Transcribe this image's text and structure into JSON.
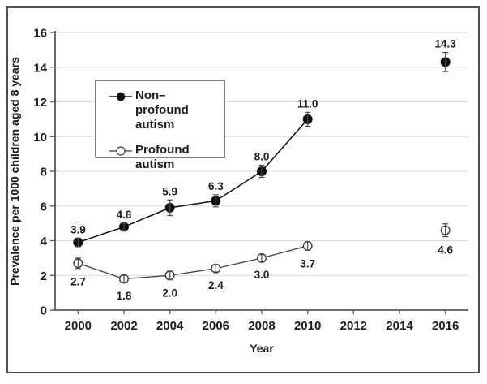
{
  "colors": {
    "background": "#ffffff",
    "frame_border": "#4d4d4d",
    "gridline": "#d9d9d9",
    "axis": "#595959",
    "series1": "#0f0f0f",
    "series2": "#3f3f3f",
    "legend_border": "#7f7f7f",
    "text": "#1a1a1a"
  },
  "legend": {
    "items": [
      {
        "label": "Non–profound autism",
        "marker": "filled-circle"
      },
      {
        "label": "Profound autism",
        "marker": "open-circle"
      }
    ]
  },
  "chart_data": {
    "type": "line",
    "title": "",
    "xlabel": "Year",
    "ylabel": "Prevalence per 1000 children aged 8 years",
    "x_categories": [
      "2000",
      "2002",
      "2004",
      "2006",
      "2008",
      "2010",
      "2012",
      "2014",
      "2016"
    ],
    "ylim": [
      0,
      16
    ],
    "y_tick_interval": 2,
    "y_ticks": [
      "0",
      "2",
      "4",
      "6",
      "8",
      "10",
      "12",
      "14",
      "16"
    ],
    "grid": "horizontal-light",
    "legend_position": "inside-upper-left",
    "error_bars": true,
    "series": [
      {
        "name": "Non–profound autism",
        "marker": "filled-circle",
        "color": "#0f0f0f",
        "label_position": "above",
        "points": [
          {
            "x": "2000",
            "y": 3.9,
            "label": "3.9",
            "err": 0.25,
            "connected": true
          },
          {
            "x": "2002",
            "y": 4.8,
            "label": "4.8",
            "err": 0.2,
            "connected": true
          },
          {
            "x": "2004",
            "y": 5.9,
            "label": "5.9",
            "err": 0.45,
            "connected": true
          },
          {
            "x": "2006",
            "y": 6.3,
            "label": "6.3",
            "err": 0.35,
            "connected": true
          },
          {
            "x": "2008",
            "y": 8.0,
            "label": "8.0",
            "err": 0.35,
            "connected": true
          },
          {
            "x": "2010",
            "y": 11.0,
            "label": "11.0",
            "err": 0.4,
            "connected": true
          },
          {
            "x": "2016",
            "y": 14.3,
            "label": "14.3",
            "err": 0.55,
            "connected": false
          }
        ]
      },
      {
        "name": "Profound autism",
        "marker": "open-circle",
        "color": "#3f3f3f",
        "label_position": "below",
        "points": [
          {
            "x": "2000",
            "y": 2.7,
            "label": "2.7",
            "err": 0.3,
            "connected": true
          },
          {
            "x": "2002",
            "y": 1.8,
            "label": "1.8",
            "err": 0.2,
            "connected": true
          },
          {
            "x": "2004",
            "y": 2.0,
            "label": "2.0",
            "err": 0.25,
            "connected": true
          },
          {
            "x": "2006",
            "y": 2.4,
            "label": "2.4",
            "err": 0.2,
            "connected": true
          },
          {
            "x": "2008",
            "y": 3.0,
            "label": "3.0",
            "err": 0.2,
            "connected": true
          },
          {
            "x": "2010",
            "y": 3.7,
            "label": "3.7",
            "err": 0.25,
            "connected": true
          },
          {
            "x": "2016",
            "y": 4.6,
            "label": "4.6",
            "err": 0.37,
            "connected": false
          }
        ]
      }
    ]
  }
}
